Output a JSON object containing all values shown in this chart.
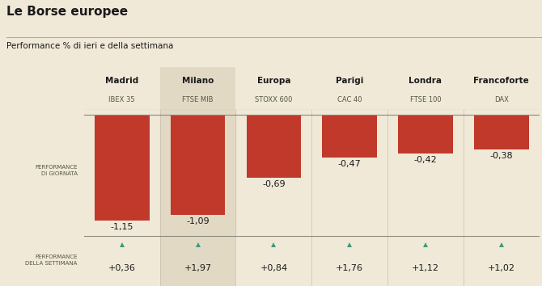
{
  "title": "Le Borse europee",
  "subtitle": "Performance % di ieri e della settimana",
  "background_color": "#f0e9d8",
  "highlight_color": "#e2d9c5",
  "bar_color": "#c1392b",
  "arrow_color": "#3a9b7e",
  "text_color": "#1a1a1a",
  "label_color": "#555544",
  "exchanges": [
    "Madrid",
    "Milano",
    "Europa",
    "Parigi",
    "Londra",
    "Francoforte"
  ],
  "indices": [
    "IBEX 35",
    "FTSE MIB",
    "STOXX 600",
    "CAC 40",
    "FTSE 100",
    "DAX"
  ],
  "daily_values": [
    -1.15,
    -1.09,
    -0.69,
    -0.47,
    -0.42,
    -0.38
  ],
  "weekly_values": [
    0.36,
    1.97,
    0.84,
    1.76,
    1.12,
    1.02
  ],
  "daily_labels": [
    "-1,15",
    "-1,09",
    "-0,69",
    "-0,47",
    "-0,42",
    "-0,38"
  ],
  "weekly_labels": [
    "+0,36",
    "+1,97",
    "+0,84",
    "+1,76",
    "+1,12",
    "+1,02"
  ],
  "highlight_column": 1,
  "perf_giornata_label": "PERFORMANCE\nDI GIORNATA",
  "perf_settimana_label": "PERFORMANCE\nDELLA SETTIMANA"
}
